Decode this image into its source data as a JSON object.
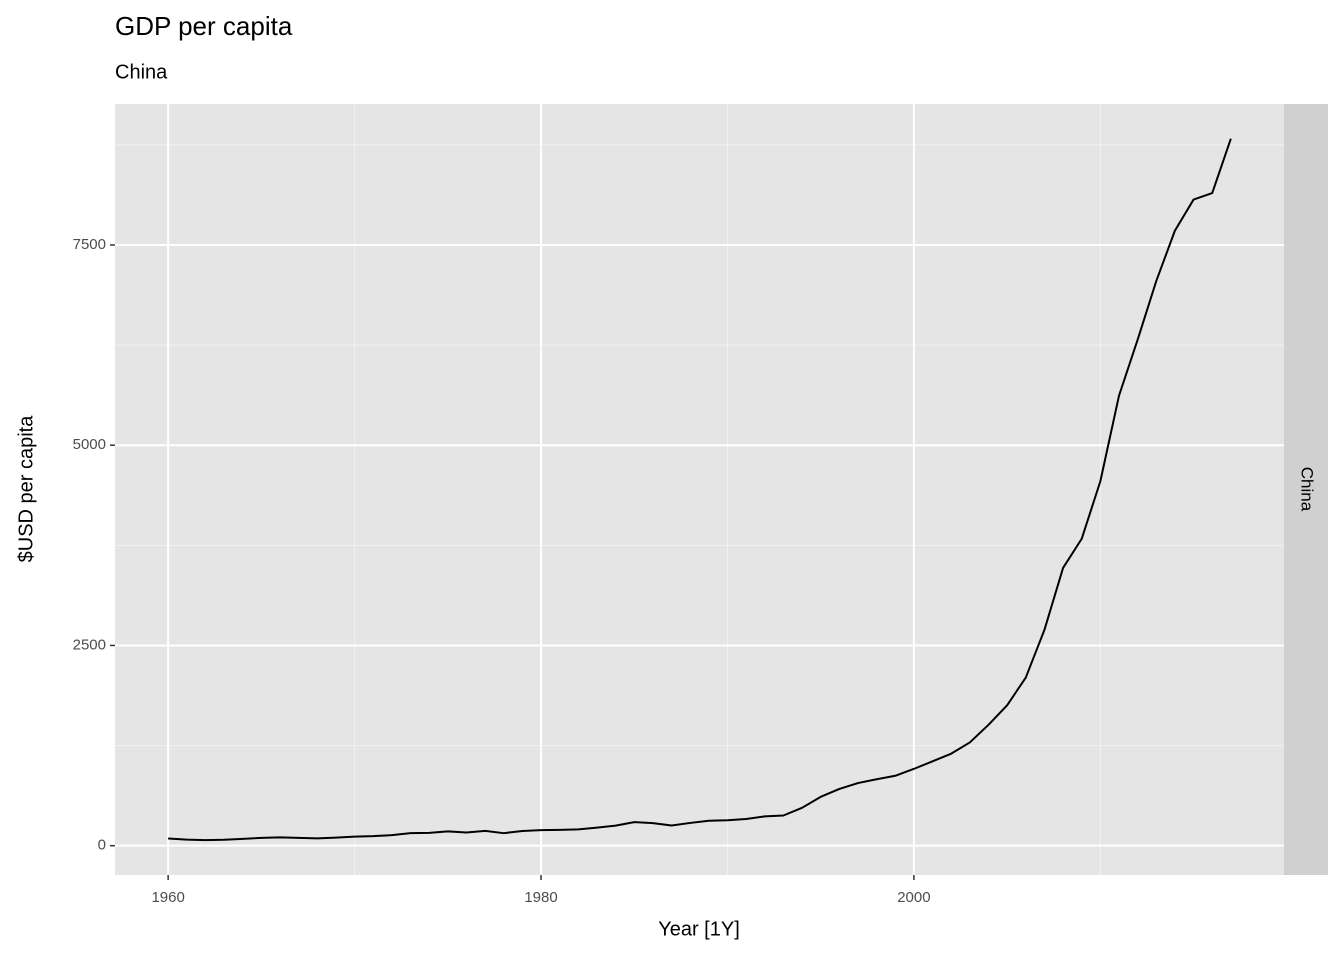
{
  "chart_data": {
    "type": "line",
    "title": "GDP per capita",
    "subtitle": "China",
    "xlabel": "Year [1Y]",
    "ylabel": "$USD per capita",
    "facet_label": "China",
    "x": [
      1960,
      1961,
      1962,
      1963,
      1964,
      1965,
      1966,
      1967,
      1968,
      1969,
      1970,
      1971,
      1972,
      1973,
      1974,
      1975,
      1976,
      1977,
      1978,
      1979,
      1980,
      1981,
      1982,
      1983,
      1984,
      1985,
      1986,
      1987,
      1988,
      1989,
      1990,
      1991,
      1992,
      1993,
      1994,
      1995,
      1996,
      1997,
      1998,
      1999,
      2000,
      2001,
      2002,
      2003,
      2004,
      2005,
      2006,
      2007,
      2008,
      2009,
      2010,
      2011,
      2012,
      2013,
      2014,
      2015,
      2016,
      2017
    ],
    "series": [
      {
        "name": "China",
        "color": "#000000",
        "values": [
          90,
          76,
          70,
          74,
          85,
          98,
          104,
          97,
          91,
          100,
          113,
          119,
          132,
          157,
          160,
          178,
          165,
          185,
          156,
          184,
          195,
          197,
          203,
          225,
          251,
          294,
          282,
          252,
          284,
          311,
          318,
          333,
          366,
          377,
          473,
          610,
          709,
          782,
          829,
          873,
          959,
          1053,
          1149,
          1289,
          1509,
          1753,
          2099,
          2694,
          3468,
          3832,
          4550,
          5618,
          6317,
          7051,
          7679,
          8067,
          8148,
          8827
        ]
      }
    ],
    "xlim": [
      1957.15,
      2019.85
    ],
    "ylim": [
      -366,
      9260
    ],
    "xticks": [
      1960,
      1980,
      2000
    ],
    "yticks": [
      0,
      2500,
      5000,
      7500
    ],
    "x_minor_grid": [
      1970,
      1990,
      2010
    ],
    "y_minor_grid": [
      1250,
      3750,
      6250,
      8750
    ],
    "grid": true
  }
}
